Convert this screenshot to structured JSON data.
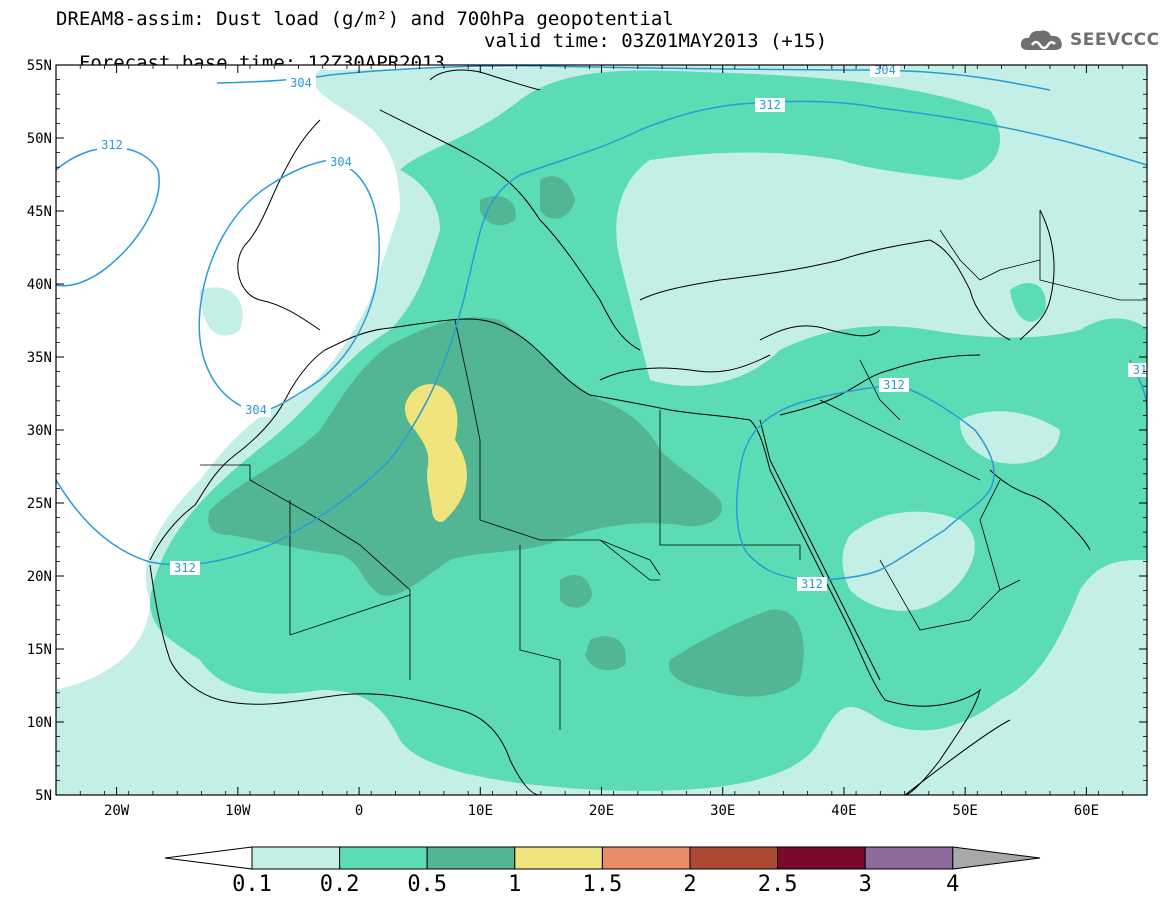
{
  "header": {
    "line1": "DREAM8-assim: Dust load (g/m²) and 700hPa geopotential",
    "line2": "Forecast base time: 12Z30APR2013",
    "valid": "valid time: 03Z01MAY2013 (+15)"
  },
  "logo": {
    "text": "SEEVCCC",
    "icon": "cloud-logo-icon"
  },
  "map": {
    "lat_labels": [
      "55N",
      "50N",
      "45N",
      "40N",
      "35N",
      "30N",
      "25N",
      "20N",
      "15N",
      "10N",
      "5N"
    ],
    "lat_values": [
      55,
      50,
      45,
      40,
      35,
      30,
      25,
      20,
      15,
      10,
      5
    ],
    "lon_labels": [
      "20W",
      "10W",
      "0",
      "10E",
      "20E",
      "30E",
      "40E",
      "50E",
      "60E"
    ],
    "lon_values": [
      -20,
      -10,
      0,
      10,
      20,
      30,
      40,
      50,
      60
    ],
    "extent": {
      "lon": [
        -25,
        65
      ],
      "lat": [
        5,
        55
      ]
    },
    "contour_labels": [
      "304",
      "304",
      "304",
      "304",
      "312",
      "312",
      "312",
      "312",
      "312",
      "312",
      "31"
    ],
    "colors": {
      "ocean": "#ffffff",
      "coast": "#000000",
      "contour": "#2a9bd8"
    }
  },
  "colorbar": {
    "levels": [
      "0.1",
      "0.2",
      "0.5",
      "1",
      "1.5",
      "2",
      "2.5",
      "3",
      "4"
    ],
    "colors": [
      "#c4efe7",
      "#5cdcb4",
      "#52b594",
      "#f0e47c",
      "#e88c66",
      "#ad4834",
      "#7a0a2a",
      "#8c6a9c",
      "#a8a8a8"
    ],
    "under_color": "#ffffff"
  }
}
